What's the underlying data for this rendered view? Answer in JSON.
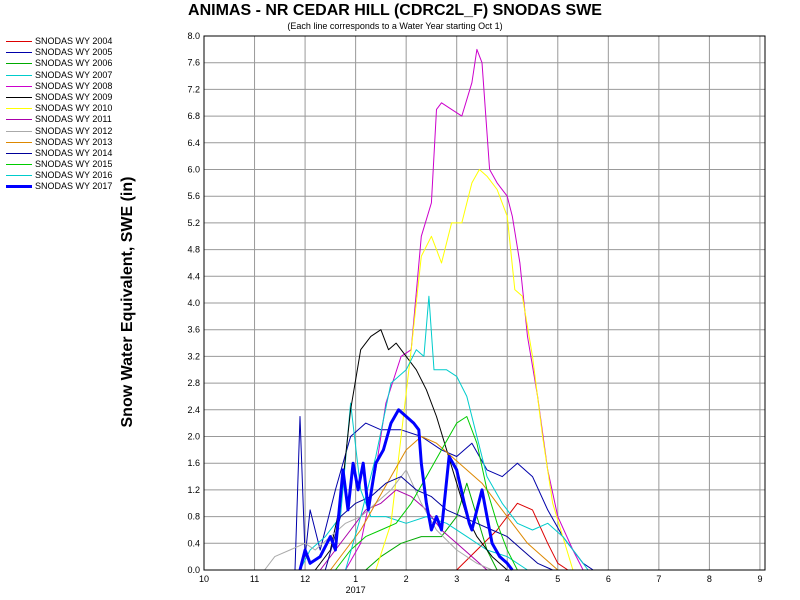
{
  "chart_data": {
    "type": "line",
    "title": "ANIMAS - NR CEDAR HILL (CDRC2L_F) SNODAS SWE",
    "subtitle": "(Each line corresponds to a Water Year starting Oct 1)",
    "ylabel": "Snow Water Equivalent, SWE (in)",
    "xlabel": "",
    "x_tick_labels": [
      "10",
      "11",
      "12",
      "1",
      "2",
      "3",
      "4",
      "5",
      "6",
      "7",
      "8",
      "9"
    ],
    "x_year_label": "2017",
    "x_year_label_month": 3,
    "xlim": [
      10,
      21.1
    ],
    "ylim": [
      0,
      8.0
    ],
    "y_ticks": [
      "0.0",
      "0.4",
      "0.8",
      "1.2",
      "1.6",
      "2.0",
      "2.4",
      "2.8",
      "3.2",
      "3.6",
      "4.0",
      "4.4",
      "4.8",
      "5.2",
      "5.6",
      "6.0",
      "6.4",
      "6.8",
      "7.2",
      "7.6",
      "8.0"
    ],
    "grid": true,
    "legend_position": "left",
    "series": [
      {
        "name": "SNODAS WY 2004",
        "color": "#dd0000",
        "width": 1,
        "points": [
          [
            15.0,
            0
          ],
          [
            15.4,
            0.3
          ],
          [
            15.8,
            0.6
          ],
          [
            16.2,
            1.0
          ],
          [
            16.5,
            0.9
          ],
          [
            16.8,
            0.4
          ],
          [
            17.0,
            0.1
          ],
          [
            17.2,
            0
          ]
        ]
      },
      {
        "name": "SNODAS WY 2005",
        "color": "#0000aa",
        "width": 1,
        "points": [
          [
            11.8,
            0
          ],
          [
            11.9,
            2.3
          ],
          [
            12.0,
            0.2
          ],
          [
            12.1,
            0.9
          ],
          [
            12.3,
            0.3
          ],
          [
            12.6,
            1.2
          ],
          [
            12.9,
            2.0
          ],
          [
            13.2,
            2.2
          ],
          [
            13.5,
            2.1
          ],
          [
            13.9,
            2.1
          ],
          [
            14.3,
            2.0
          ],
          [
            14.7,
            1.8
          ],
          [
            15.0,
            1.7
          ],
          [
            15.3,
            1.9
          ],
          [
            15.6,
            1.5
          ],
          [
            15.9,
            1.4
          ],
          [
            16.2,
            1.6
          ],
          [
            16.5,
            1.4
          ],
          [
            16.8,
            0.9
          ],
          [
            17.1,
            0.5
          ],
          [
            17.5,
            0.1
          ],
          [
            17.7,
            0
          ]
        ]
      },
      {
        "name": "SNODAS WY 2006",
        "color": "#00aa00",
        "width": 1,
        "points": [
          [
            13.2,
            0
          ],
          [
            13.5,
            0.2
          ],
          [
            13.9,
            0.4
          ],
          [
            14.3,
            0.5
          ],
          [
            14.7,
            0.5
          ],
          [
            15.0,
            0.8
          ],
          [
            15.2,
            1.3
          ],
          [
            15.4,
            0.8
          ],
          [
            15.6,
            0.3
          ],
          [
            15.8,
            0
          ]
        ]
      },
      {
        "name": "SNODAS WY 2007",
        "color": "#00cccc",
        "width": 1,
        "points": [
          [
            11.9,
            0
          ],
          [
            12.1,
            0.3
          ],
          [
            12.4,
            0.5
          ],
          [
            12.7,
            0.8
          ],
          [
            12.9,
            2.5
          ],
          [
            13.1,
            1.2
          ],
          [
            13.3,
            0.8
          ],
          [
            13.6,
            0.8
          ],
          [
            14.0,
            0.7
          ],
          [
            14.4,
            0.8
          ],
          [
            14.8,
            0.7
          ],
          [
            15.2,
            0.5
          ],
          [
            15.6,
            0.3
          ],
          [
            16.0,
            0.2
          ],
          [
            16.4,
            0
          ]
        ]
      },
      {
        "name": "SNODAS WY 2008",
        "color": "#cc00cc",
        "width": 1,
        "points": [
          [
            12.8,
            0
          ],
          [
            13.1,
            0.4
          ],
          [
            13.4,
            1.5
          ],
          [
            13.6,
            2.5
          ],
          [
            13.9,
            3.2
          ],
          [
            14.1,
            3.3
          ],
          [
            14.3,
            5.0
          ],
          [
            14.5,
            5.5
          ],
          [
            14.6,
            6.9
          ],
          [
            14.7,
            7.0
          ],
          [
            14.9,
            6.9
          ],
          [
            15.1,
            6.8
          ],
          [
            15.3,
            7.3
          ],
          [
            15.4,
            7.8
          ],
          [
            15.5,
            7.6
          ],
          [
            15.65,
            6.0
          ],
          [
            15.8,
            5.8
          ],
          [
            16.0,
            5.6
          ],
          [
            16.1,
            5.3
          ],
          [
            16.25,
            4.6
          ],
          [
            16.4,
            3.5
          ],
          [
            16.6,
            2.6
          ],
          [
            16.8,
            1.5
          ],
          [
            17.0,
            0.8
          ],
          [
            17.3,
            0.3
          ],
          [
            17.5,
            0
          ]
        ]
      },
      {
        "name": "SNODAS WY 2009",
        "color": "#000000",
        "width": 1,
        "points": [
          [
            12.2,
            0
          ],
          [
            12.5,
            0.3
          ],
          [
            12.7,
            1.0
          ],
          [
            12.9,
            2.4
          ],
          [
            13.1,
            3.3
          ],
          [
            13.3,
            3.5
          ],
          [
            13.5,
            3.6
          ],
          [
            13.65,
            3.3
          ],
          [
            13.8,
            3.4
          ],
          [
            14.0,
            3.2
          ],
          [
            14.2,
            3.0
          ],
          [
            14.4,
            2.7
          ],
          [
            14.6,
            2.3
          ],
          [
            14.8,
            1.8
          ],
          [
            15.0,
            1.3
          ],
          [
            15.2,
            0.8
          ],
          [
            15.4,
            0.5
          ],
          [
            15.7,
            0.2
          ],
          [
            16.0,
            0
          ]
        ]
      },
      {
        "name": "SNODAS WY 2010",
        "color": "#ffff00",
        "width": 1,
        "points": [
          [
            13.4,
            0
          ],
          [
            13.7,
            0.7
          ],
          [
            13.9,
            2.0
          ],
          [
            14.1,
            3.3
          ],
          [
            14.3,
            4.7
          ],
          [
            14.5,
            5.0
          ],
          [
            14.6,
            4.8
          ],
          [
            14.7,
            4.6
          ],
          [
            14.9,
            5.2
          ],
          [
            15.1,
            5.2
          ],
          [
            15.3,
            5.8
          ],
          [
            15.45,
            6.0
          ],
          [
            15.6,
            5.9
          ],
          [
            15.8,
            5.7
          ],
          [
            16.0,
            5.3
          ],
          [
            16.15,
            4.2
          ],
          [
            16.3,
            4.1
          ],
          [
            16.5,
            3.2
          ],
          [
            16.7,
            2.0
          ],
          [
            16.9,
            1.0
          ],
          [
            17.1,
            0.5
          ],
          [
            17.3,
            0
          ]
        ]
      },
      {
        "name": "SNODAS WY 2011",
        "color": "#aa00aa",
        "width": 1,
        "points": [
          [
            12.3,
            0
          ],
          [
            12.6,
            0.3
          ],
          [
            12.9,
            0.6
          ],
          [
            13.2,
            0.9
          ],
          [
            13.5,
            1.0
          ],
          [
            13.8,
            1.2
          ],
          [
            14.1,
            1.1
          ],
          [
            14.4,
            0.9
          ],
          [
            14.7,
            0.6
          ],
          [
            15.0,
            0.4
          ],
          [
            15.3,
            0.2
          ],
          [
            15.6,
            0
          ]
        ]
      },
      {
        "name": "SNODAS WY 2012",
        "color": "#aaaaaa",
        "width": 1,
        "points": [
          [
            11.2,
            0
          ],
          [
            11.4,
            0.2
          ],
          [
            11.7,
            0.3
          ],
          [
            12.0,
            0.4
          ],
          [
            12.2,
            0.3
          ],
          [
            12.5,
            0.5
          ],
          [
            12.8,
            0.7
          ],
          [
            13.1,
            0.8
          ],
          [
            13.4,
            1.0
          ],
          [
            13.7,
            1.2
          ],
          [
            14.0,
            1.5
          ],
          [
            14.3,
            1.0
          ],
          [
            14.6,
            0.6
          ],
          [
            15.0,
            0.3
          ],
          [
            15.4,
            0.1
          ],
          [
            15.7,
            0
          ]
        ]
      },
      {
        "name": "SNODAS WY 2013",
        "color": "#dd8800",
        "width": 1,
        "points": [
          [
            12.5,
            0
          ],
          [
            12.8,
            0.3
          ],
          [
            13.1,
            0.6
          ],
          [
            13.4,
            1.0
          ],
          [
            13.7,
            1.4
          ],
          [
            14.0,
            1.8
          ],
          [
            14.3,
            2.0
          ],
          [
            14.6,
            1.9
          ],
          [
            14.9,
            1.7
          ],
          [
            15.2,
            1.5
          ],
          [
            15.5,
            1.3
          ],
          [
            15.8,
            1.0
          ],
          [
            16.1,
            0.7
          ],
          [
            16.4,
            0.4
          ],
          [
            16.7,
            0.2
          ],
          [
            17.0,
            0
          ]
        ]
      },
      {
        "name": "SNODAS WY 2014",
        "color": "#000099",
        "width": 1,
        "points": [
          [
            12.4,
            0
          ],
          [
            12.7,
            0.8
          ],
          [
            13.0,
            1.0
          ],
          [
            13.3,
            1.1
          ],
          [
            13.6,
            1.3
          ],
          [
            13.9,
            1.4
          ],
          [
            14.2,
            1.2
          ],
          [
            14.5,
            1.1
          ],
          [
            14.8,
            0.9
          ],
          [
            15.1,
            0.8
          ],
          [
            15.4,
            0.7
          ],
          [
            15.7,
            0.6
          ],
          [
            16.0,
            0.5
          ],
          [
            16.3,
            0.3
          ],
          [
            16.6,
            0.1
          ],
          [
            16.9,
            0
          ]
        ]
      },
      {
        "name": "SNODAS WY 2015",
        "color": "#00cc00",
        "width": 1,
        "points": [
          [
            12.6,
            0
          ],
          [
            12.9,
            0.3
          ],
          [
            13.2,
            0.5
          ],
          [
            13.5,
            0.6
          ],
          [
            13.8,
            0.7
          ],
          [
            14.1,
            1.0
          ],
          [
            14.4,
            1.4
          ],
          [
            14.7,
            1.8
          ],
          [
            15.0,
            2.2
          ],
          [
            15.2,
            2.3
          ],
          [
            15.4,
            1.9
          ],
          [
            15.6,
            1.2
          ],
          [
            15.8,
            0.7
          ],
          [
            16.0,
            0.3
          ],
          [
            16.2,
            0
          ]
        ]
      },
      {
        "name": "SNODAS WY 2016",
        "color": "#00cccc",
        "width": 1,
        "points": [
          [
            12.8,
            0
          ],
          [
            13.1,
            0.8
          ],
          [
            13.4,
            1.7
          ],
          [
            13.7,
            2.8
          ],
          [
            14.0,
            3.0
          ],
          [
            14.2,
            3.3
          ],
          [
            14.35,
            3.2
          ],
          [
            14.45,
            4.1
          ],
          [
            14.55,
            3.0
          ],
          [
            14.8,
            3.0
          ],
          [
            15.0,
            2.9
          ],
          [
            15.2,
            2.6
          ],
          [
            15.4,
            2.0
          ],
          [
            15.6,
            1.4
          ],
          [
            15.9,
            1.0
          ],
          [
            16.2,
            0.7
          ],
          [
            16.5,
            0.6
          ],
          [
            16.8,
            0.7
          ],
          [
            17.1,
            0.5
          ],
          [
            17.4,
            0.2
          ],
          [
            17.6,
            0
          ]
        ]
      },
      {
        "name": "SNODAS WY 2017",
        "color": "#0000ff",
        "width": 3,
        "points": [
          [
            11.9,
            0
          ],
          [
            12.0,
            0.3
          ],
          [
            12.1,
            0.1
          ],
          [
            12.3,
            0.2
          ],
          [
            12.5,
            0.5
          ],
          [
            12.6,
            0.3
          ],
          [
            12.75,
            1.5
          ],
          [
            12.85,
            0.9
          ],
          [
            12.95,
            1.6
          ],
          [
            13.05,
            1.2
          ],
          [
            13.15,
            1.6
          ],
          [
            13.25,
            0.9
          ],
          [
            13.4,
            1.6
          ],
          [
            13.55,
            1.8
          ],
          [
            13.7,
            2.2
          ],
          [
            13.85,
            2.4
          ],
          [
            14.0,
            2.3
          ],
          [
            14.15,
            2.2
          ],
          [
            14.25,
            2.1
          ],
          [
            14.3,
            1.6
          ],
          [
            14.4,
            1.0
          ],
          [
            14.45,
            0.8
          ],
          [
            14.5,
            0.6
          ],
          [
            14.6,
            0.8
          ],
          [
            14.7,
            0.6
          ],
          [
            14.85,
            1.7
          ],
          [
            15.0,
            1.5
          ],
          [
            15.15,
            1.0
          ],
          [
            15.25,
            0.7
          ],
          [
            15.3,
            0.6
          ],
          [
            15.4,
            0.9
          ],
          [
            15.5,
            1.2
          ],
          [
            15.6,
            0.8
          ],
          [
            15.7,
            0.4
          ],
          [
            15.85,
            0.2
          ],
          [
            16.0,
            0.1
          ],
          [
            16.1,
            0
          ]
        ]
      }
    ]
  }
}
